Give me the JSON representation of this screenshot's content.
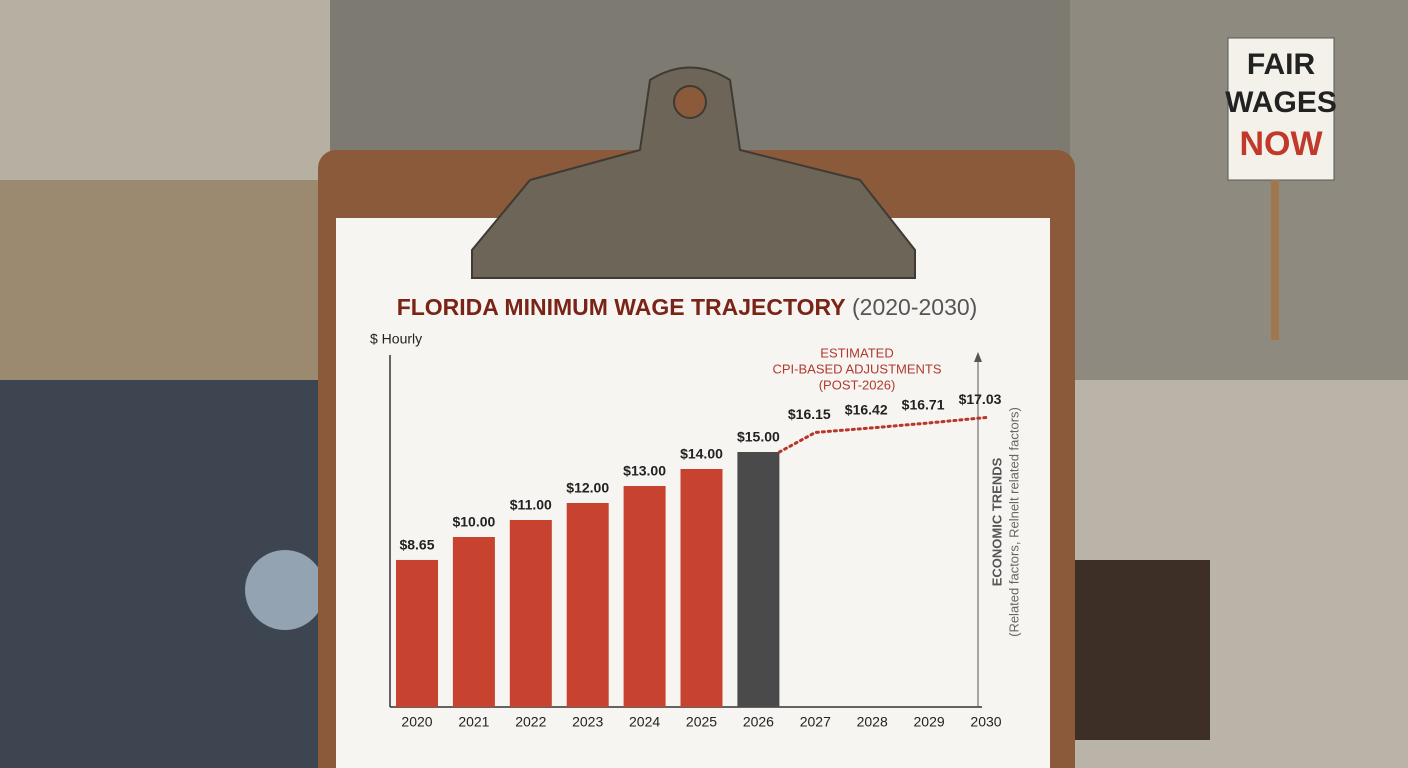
{
  "chart_data": {
    "type": "bar",
    "title": "FLORIDA MINIMUM WAGE TRAJECTORY",
    "title_range": "(2020-2030)",
    "y_label": "$ Hourly",
    "categories": [
      "2020",
      "2021",
      "2022",
      "2023",
      "2024",
      "2025",
      "2026",
      "2027",
      "2028",
      "2029",
      "2030"
    ],
    "values": [
      8.65,
      10,
      11,
      12,
      13,
      14,
      15,
      null,
      null,
      null,
      null
    ],
    "value_labels": [
      "$8.65",
      "$10.00",
      "$11.00",
      "$12.00",
      "$13.00",
      "$14.00",
      "$15.00",
      null,
      null,
      null,
      null
    ],
    "colors": [
      "#c8432f",
      "#c8432f",
      "#c8432f",
      "#c8432f",
      "#c8432f",
      "#c8432f",
      "#4a4a4a",
      null,
      null,
      null,
      null
    ],
    "projection": {
      "type": "line",
      "color": "#b8362a",
      "dashed": true,
      "values": [
        null,
        null,
        null,
        null,
        null,
        null,
        15,
        16.15,
        16.42,
        16.71,
        17.03
      ],
      "value_labels": [
        null,
        null,
        null,
        null,
        null,
        null,
        null,
        "$16.15",
        "$16.42",
        "$16.71",
        "$17.03"
      ]
    },
    "annotation": [
      "ESTIMATED",
      "CPI-BASED ADJUSTMENTS",
      "(POST-2026)"
    ],
    "side_note": [
      "ECONOMIC TRENDS",
      "(Related factors, Relnelt related factors)"
    ],
    "ylim": [
      0,
      20
    ]
  },
  "background": {
    "sign": [
      "FAIR",
      "WAGES",
      "NOW"
    ]
  }
}
